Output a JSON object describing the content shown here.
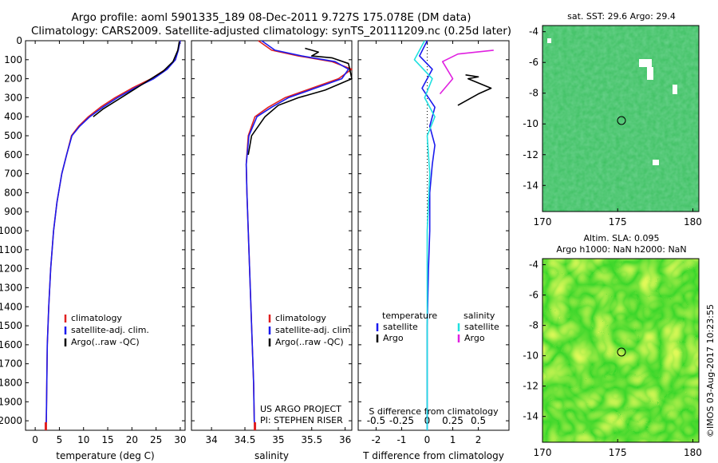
{
  "header": {
    "line1": "Argo profile: aoml 5901335_189 08-Dec-2011 9.727S 175.078E (DM data)",
    "line2": "Climatology: CARS2009. Satellite-adjusted climatology: synTS_20111209.nc (0.25d later)"
  },
  "credit": "©IMOS 03-Aug-2017 10:23:55",
  "project": {
    "line1": "US ARGO PROJECT",
    "line2": "PI: STEPHEN RISER"
  },
  "colors": {
    "climatology": "#e02020",
    "satellite": "#1a1aee",
    "argo": "#000000",
    "sal_sat": "#20e0e0",
    "sal_argo": "#e020e0",
    "sst_map": "#2ec24a",
    "sla_map": "#66e000"
  },
  "chart_data": [
    {
      "type": "line",
      "id": "temperature",
      "xlabel": "temperature (deg C)",
      "ylabel": "",
      "xlim": [
        -2,
        31
      ],
      "ylim": [
        2050,
        0
      ],
      "x_ticks": [
        0,
        5,
        10,
        15,
        20,
        25,
        30
      ],
      "y_ticks": [
        0,
        100,
        200,
        300,
        400,
        500,
        600,
        700,
        800,
        900,
        1000,
        1100,
        1200,
        1300,
        1400,
        1500,
        1600,
        1700,
        1800,
        1900,
        2000
      ],
      "legend": [
        "climatology",
        "satellite-adj. clim.",
        "Argo(..raw -QC)"
      ],
      "series": [
        {
          "name": "climatology",
          "color": "#e02020",
          "x": [
            30,
            29.5,
            29,
            27,
            24,
            20,
            16.5,
            13.5,
            11,
            9,
            7.5,
            6.5,
            5.5,
            4.5,
            3.8,
            3.2,
            2.8,
            2.5,
            2.4,
            2.3,
            2.2
          ],
          "y": [
            0,
            50,
            100,
            150,
            200,
            250,
            300,
            350,
            400,
            450,
            500,
            600,
            700,
            850,
            1000,
            1200,
            1400,
            1600,
            1800,
            2000,
            2050
          ]
        },
        {
          "name": "satellite-adj. clim.",
          "color": "#1a1aee",
          "x": [
            30,
            29.6,
            29,
            27.3,
            24.5,
            20.5,
            17,
            14,
            11.3,
            9.2,
            7.6,
            6.5,
            5.5,
            4.5,
            3.8,
            3.2,
            2.8,
            2.5,
            2.4,
            2.3,
            2.2
          ],
          "y": [
            0,
            50,
            100,
            150,
            200,
            250,
            300,
            350,
            400,
            450,
            500,
            600,
            700,
            850,
            1000,
            1200,
            1400,
            1600,
            1800,
            2000,
            2050
          ]
        },
        {
          "name": "Argo(..raw -QC)",
          "color": "#000000",
          "x": [
            29.8,
            29.5,
            28.5,
            26.5,
            24,
            21.5,
            19,
            16.5,
            14,
            12
          ],
          "y": [
            5,
            50,
            110,
            160,
            200,
            240,
            280,
            320,
            360,
            400
          ]
        }
      ]
    },
    {
      "type": "line",
      "id": "salinity",
      "xlabel": "salinity",
      "ylabel": "",
      "xlim": [
        33.7,
        36.1
      ],
      "ylim": [
        2050,
        0
      ],
      "x_ticks": [
        34,
        34.5,
        35,
        35.5,
        36
      ],
      "legend": [
        "climatology",
        "satellite-adj. clim.",
        "Argo(..raw -QC)"
      ],
      "series": [
        {
          "name": "climatology",
          "color": "#e02020",
          "x": [
            34.7,
            34.9,
            35.3,
            35.8,
            36.1,
            35.9,
            35.5,
            35.1,
            34.85,
            34.65,
            34.55,
            34.52,
            34.53,
            34.55,
            34.57,
            34.59,
            34.61,
            34.63,
            34.64,
            34.65
          ],
          "y": [
            0,
            50,
            80,
            110,
            150,
            200,
            250,
            300,
            350,
            400,
            500,
            650,
            800,
            1000,
            1200,
            1400,
            1600,
            1800,
            2000,
            2050
          ]
        },
        {
          "name": "satellite-adj. clim.",
          "color": "#1a1aee",
          "x": [
            34.75,
            34.95,
            35.35,
            35.85,
            36.05,
            35.95,
            35.55,
            35.15,
            34.9,
            34.68,
            34.56,
            34.52,
            34.53,
            34.55,
            34.57,
            34.59,
            34.61,
            34.63,
            34.64,
            34.65
          ],
          "y": [
            0,
            50,
            80,
            110,
            150,
            200,
            250,
            300,
            350,
            400,
            500,
            650,
            800,
            1000,
            1200,
            1400,
            1600,
            1800,
            2000,
            2050
          ]
        },
        {
          "name": "Argo(..raw -QC)",
          "color": "#000000",
          "x": [
            35.4,
            35.6,
            35.5,
            35.8,
            36.05,
            36.1,
            35.7,
            35.3,
            35.0,
            34.8,
            34.6,
            34.55
          ],
          "y": [
            40,
            60,
            80,
            90,
            120,
            200,
            260,
            300,
            340,
            400,
            500,
            600
          ]
        }
      ]
    },
    {
      "type": "line",
      "id": "difference",
      "xlabel": "T difference from climatology",
      "xlabel_top": "S difference from climatology",
      "xlim": [
        -2.7,
        3.2
      ],
      "ylim": [
        2050,
        0
      ],
      "x_ticks": [
        -2,
        -1,
        0,
        1,
        2
      ],
      "x_ticks_top": [
        "-0.5",
        "-0.25",
        "0",
        "0.25",
        "0.5"
      ],
      "legend_groups": [
        "temperature",
        "salinity"
      ],
      "legend": [
        "satellite",
        "Argo",
        "satellite",
        "Argo"
      ],
      "series": [
        {
          "name": "satellite",
          "color": "#1a1aee",
          "x": [
            0,
            -0.3,
            0.2,
            -0.2,
            0.3,
            0.1,
            0.3,
            0.2,
            0.1,
            0.1,
            0.05,
            0,
            0,
            0
          ],
          "y": [
            0,
            80,
            150,
            250,
            350,
            450,
            550,
            650,
            800,
            1000,
            1200,
            1500,
            1800,
            2050
          ]
        },
        {
          "name": "Argo",
          "color": "#000000",
          "x": [
            1.5,
            2.0,
            1.6,
            2.5,
            2.0,
            1.2
          ],
          "y": [
            180,
            190,
            200,
            250,
            280,
            340
          ]
        },
        {
          "name": "satellite",
          "color": "#20e0e0",
          "x": [
            -0.1,
            -0.5,
            0.2,
            -0.1,
            0.3,
            0,
            0.1,
            0,
            0,
            0
          ],
          "y": [
            0,
            100,
            200,
            300,
            400,
            500,
            700,
            1000,
            1500,
            2050
          ]
        },
        {
          "name": "Argo",
          "color": "#e020e0",
          "x": [
            2.6,
            1.2,
            0.6,
            1.0,
            0.5
          ],
          "y": [
            50,
            70,
            110,
            200,
            280
          ]
        }
      ]
    }
  ],
  "maps": {
    "sst": {
      "title": "sat. SST: 29.6 Argo: 29.4",
      "x_ticks": [
        "170",
        "175",
        "180"
      ],
      "y_ticks": [
        "-4",
        "-6",
        "-8",
        "-10",
        "-12",
        "-14"
      ],
      "marker": {
        "lon": 175.078,
        "lat": -9.727
      }
    },
    "sla": {
      "title1": "Altim. SLA: 0.095",
      "title2": "Argo h1000: NaN h2000: NaN",
      "x_ticks": [
        "170",
        "175",
        "180"
      ],
      "y_ticks": [
        "-4",
        "-6",
        "-8",
        "-10",
        "-12",
        "-14"
      ],
      "marker": {
        "lon": 175.078,
        "lat": -9.727
      }
    }
  }
}
